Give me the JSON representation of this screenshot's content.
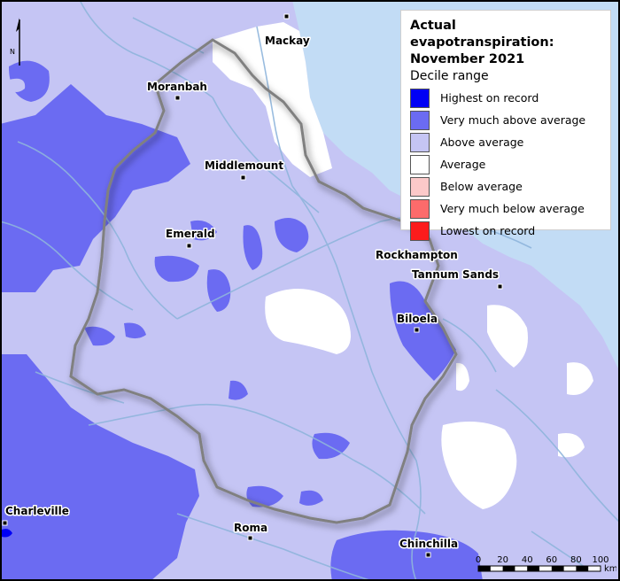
{
  "legend": {
    "title_line1": "Actual evapotranspiration:",
    "title_line2": "November 2021",
    "subtitle": "Decile range",
    "items": [
      {
        "label": "Highest on record",
        "color": "#0000f5"
      },
      {
        "label": "Very much above average",
        "color": "#6b6bf2"
      },
      {
        "label": "Above average",
        "color": "#c5c5f4"
      },
      {
        "label": "Average",
        "color": "#ffffff"
      },
      {
        "label": "Below average",
        "color": "#fcc9c9"
      },
      {
        "label": "Very much below average",
        "color": "#fc6b6b"
      },
      {
        "label": "Lowest on record",
        "color": "#fc1c1c"
      }
    ]
  },
  "north_arrow": {
    "letter": "N"
  },
  "scale_bar": {
    "ticks": [
      "0",
      "20",
      "40",
      "60",
      "80",
      "100"
    ],
    "unit": "km"
  },
  "towns": [
    {
      "name": "Mackay"
    },
    {
      "name": "Moranbah"
    },
    {
      "name": "Middlemount"
    },
    {
      "name": "Emerald"
    },
    {
      "name": "Rockhampton"
    },
    {
      "name": "Tannum Sands"
    },
    {
      "name": "Biloela"
    },
    {
      "name": "Charleville"
    },
    {
      "name": "Roma"
    },
    {
      "name": "Chinchilla"
    }
  ],
  "colors": {
    "ocean": "#c2dcf5",
    "rivers": "#8fb5dc",
    "region_outline": "#808080"
  }
}
